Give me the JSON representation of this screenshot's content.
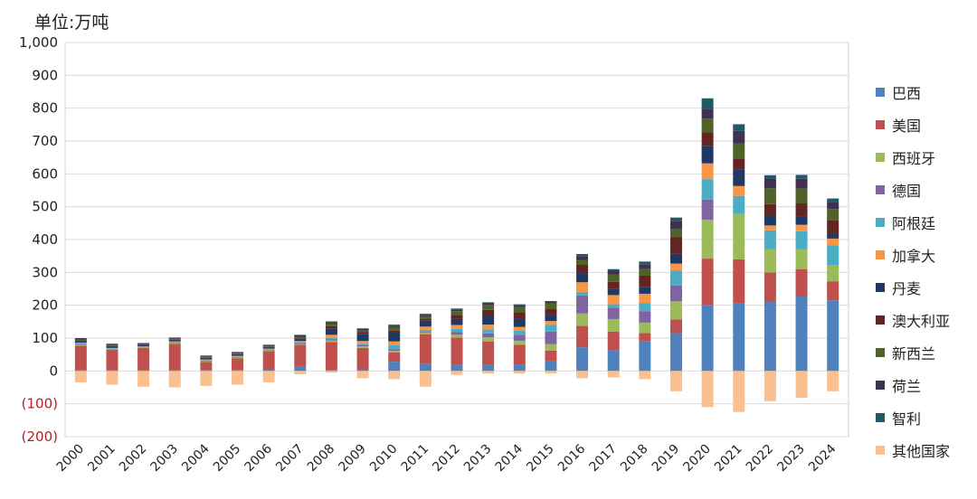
{
  "chart_data": {
    "type": "bar",
    "stacked": true,
    "unit_label": "单位:万吨",
    "title": "",
    "xlabel": "",
    "ylabel": "",
    "ylim": [
      -200,
      1000
    ],
    "y_ticks": [
      {
        "value": 1000,
        "label": "1,000"
      },
      {
        "value": 900,
        "label": "900"
      },
      {
        "value": 800,
        "label": "800"
      },
      {
        "value": 700,
        "label": "700"
      },
      {
        "value": 600,
        "label": "600"
      },
      {
        "value": 500,
        "label": "500"
      },
      {
        "value": 400,
        "label": "400"
      },
      {
        "value": 300,
        "label": "300"
      },
      {
        "value": 200,
        "label": "200"
      },
      {
        "value": 100,
        "label": "100"
      },
      {
        "value": 0,
        "label": "0"
      },
      {
        "value": -100,
        "label": "(100)"
      },
      {
        "value": -200,
        "label": "(200)"
      }
    ],
    "positive_tick_color": "#222222",
    "negative_tick_color": "#b22222",
    "grid": true,
    "legend_position": "right",
    "categories": [
      "2000",
      "2001",
      "2002",
      "2003",
      "2004",
      "2005",
      "2006",
      "2007",
      "2008",
      "2009",
      "2010",
      "2011",
      "2012",
      "2013",
      "2014",
      "2015",
      "2016",
      "2017",
      "2018",
      "2019",
      "2020",
      "2021",
      "2022",
      "2023",
      "2024"
    ],
    "series": [
      {
        "name": "巴西",
        "color": "#4f81bd",
        "values": [
          2,
          2,
          2,
          2,
          2,
          3,
          5,
          15,
          3,
          5,
          28,
          22,
          20,
          18,
          18,
          30,
          72,
          62,
          90,
          115,
          200,
          205,
          210,
          228,
          215
        ]
      },
      {
        "name": "美国",
        "color": "#c0504d",
        "values": [
          75,
          62,
          68,
          80,
          25,
          35,
          55,
          65,
          85,
          65,
          28,
          90,
          82,
          72,
          62,
          32,
          65,
          58,
          25,
          42,
          142,
          135,
          90,
          82,
          58
        ]
      },
      {
        "name": "西班牙",
        "color": "#9bbb59",
        "values": [
          3,
          2,
          2,
          2,
          2,
          2,
          2,
          2,
          5,
          5,
          5,
          5,
          8,
          12,
          12,
          20,
          38,
          38,
          32,
          55,
          118,
          138,
          70,
          60,
          50
        ]
      },
      {
        "name": "德国",
        "color": "#8064a2",
        "values": [
          2,
          1,
          1,
          2,
          2,
          2,
          2,
          3,
          4,
          3,
          5,
          3,
          8,
          12,
          18,
          38,
          55,
          35,
          35,
          48,
          62,
          0,
          0,
          0,
          0
        ]
      },
      {
        "name": "阿根廷",
        "color": "#4bacc6",
        "values": [
          2,
          1,
          1,
          2,
          2,
          2,
          2,
          3,
          5,
          5,
          12,
          5,
          10,
          12,
          12,
          20,
          10,
          10,
          25,
          45,
          62,
          55,
          58,
          55,
          60
        ]
      },
      {
        "name": "加拿大",
        "color": "#f79646",
        "values": [
          2,
          2,
          1,
          2,
          2,
          2,
          2,
          3,
          8,
          8,
          12,
          10,
          12,
          15,
          12,
          12,
          30,
          28,
          28,
          22,
          48,
          30,
          15,
          20,
          20
        ]
      },
      {
        "name": "丹麦",
        "color": "#1f3864",
        "values": [
          5,
          4,
          3,
          3,
          3,
          3,
          3,
          5,
          18,
          22,
          28,
          18,
          18,
          25,
          25,
          18,
          28,
          18,
          20,
          30,
          52,
          50,
          30,
          25,
          15
        ]
      },
      {
        "name": "澳大利亚",
        "color": "#632523",
        "values": [
          2,
          2,
          2,
          2,
          2,
          2,
          2,
          3,
          8,
          5,
          5,
          5,
          12,
          20,
          20,
          20,
          25,
          22,
          35,
          50,
          42,
          32,
          35,
          40,
          40
        ]
      },
      {
        "name": "新西兰",
        "color": "#4f6228",
        "values": [
          3,
          3,
          2,
          3,
          3,
          3,
          3,
          5,
          8,
          5,
          10,
          7,
          12,
          15,
          15,
          15,
          15,
          22,
          20,
          25,
          42,
          48,
          48,
          45,
          35
        ]
      },
      {
        "name": "荷兰",
        "color": "#3f3151",
        "values": [
          3,
          3,
          2,
          3,
          3,
          3,
          3,
          5,
          5,
          5,
          5,
          6,
          5,
          5,
          6,
          5,
          10,
          12,
          15,
          25,
          30,
          38,
          30,
          30,
          22
        ]
      },
      {
        "name": "智利",
        "color": "#215968",
        "values": [
          1,
          1,
          1,
          1,
          1,
          1,
          1,
          1,
          2,
          2,
          3,
          3,
          3,
          3,
          3,
          3,
          8,
          5,
          8,
          10,
          32,
          20,
          10,
          12,
          10
        ]
      },
      {
        "name": "其他国家",
        "color": "#fac090",
        "values": [
          -35,
          -42,
          -48,
          -50,
          -46,
          -42,
          -35,
          -10,
          -5,
          -22,
          -25,
          -48,
          -12,
          -8,
          -8,
          -8,
          -22,
          -20,
          -25,
          -62,
          -110,
          -125,
          -92,
          -82,
          -62
        ]
      }
    ]
  }
}
